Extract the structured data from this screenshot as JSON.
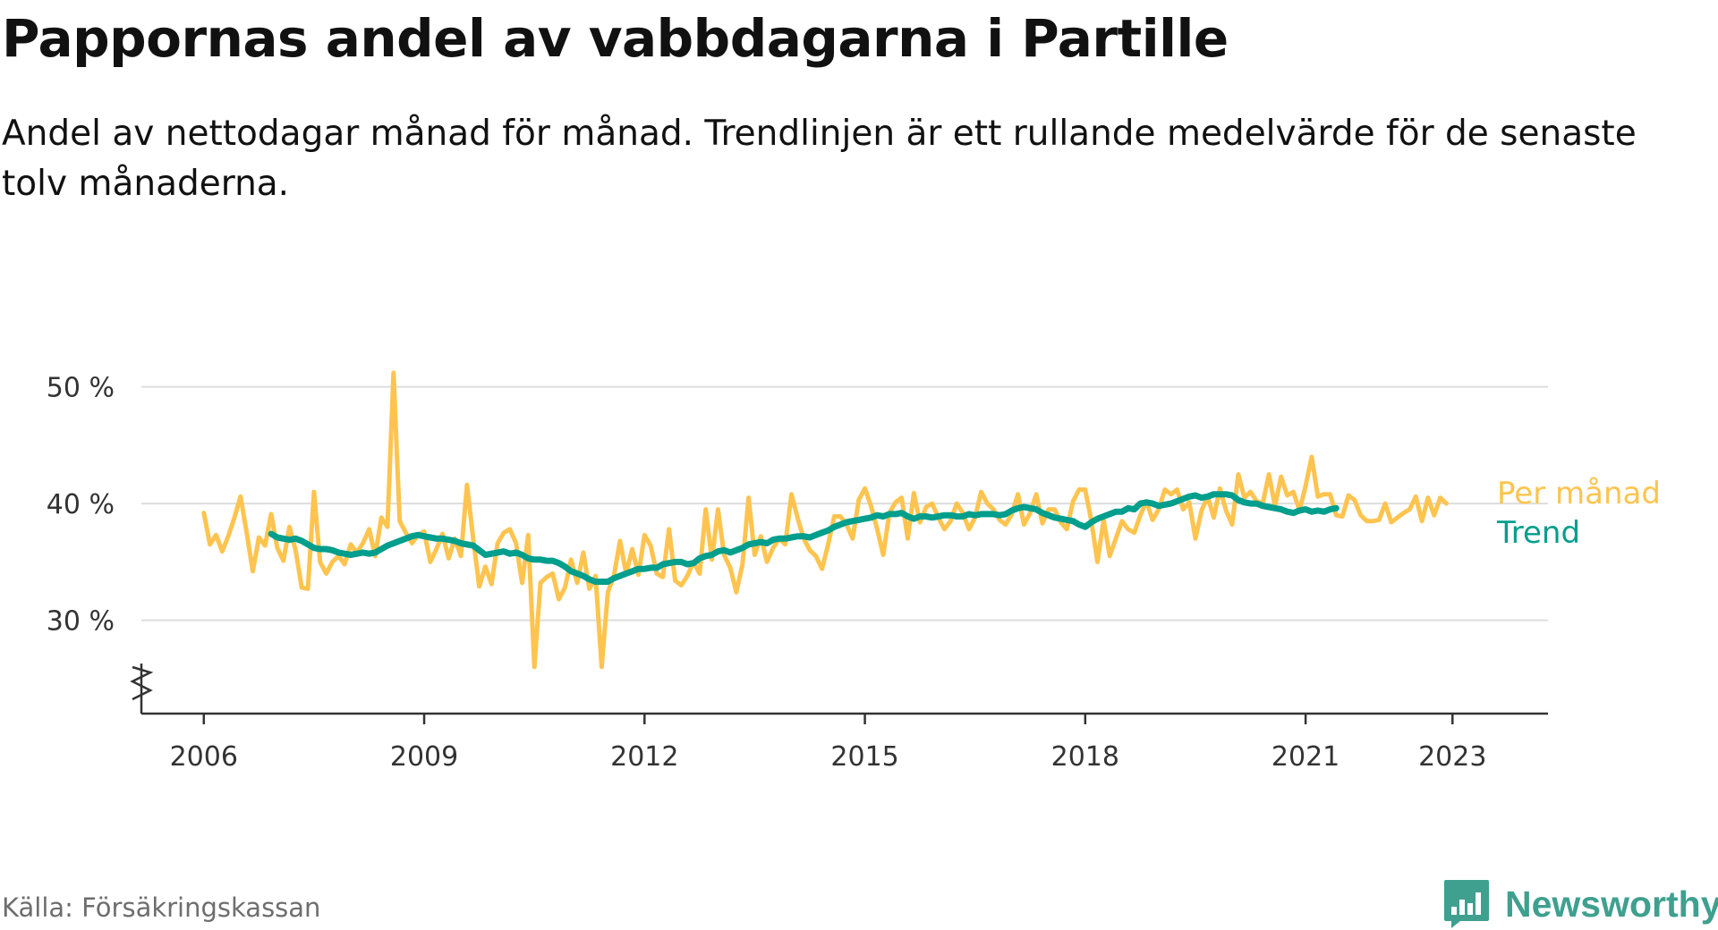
{
  "header": {
    "title": "Pappornas andel av vabbdagarna i Partille",
    "subtitle": "Andel av nettodagar månad för månad. Trendlinjen är ett rullande medelvärde för de senaste tolv månaderna."
  },
  "footer": {
    "source": "Källa: Försäkringskassan",
    "brand": "Newsworthy"
  },
  "colors": {
    "monthly": "#fec44f",
    "trend": "#009e8c",
    "grid": "#dddddd",
    "axis": "#333333",
    "brand": "#3fa08f"
  },
  "chart_data": {
    "type": "line",
    "title": "Pappornas andel av vabbdagarna i Partille",
    "subtitle": "Andel av nettodagar månad för månad. Trendlinjen är ett rullande medelvärde för de senaste tolv månaderna.",
    "x_unit": "year",
    "y_unit": "%",
    "xlim": [
      2005.15,
      2024.3
    ],
    "ylim": [
      22,
      52.5
    ],
    "y_ticks": [
      {
        "value": 30,
        "label": "30 %"
      },
      {
        "value": 40,
        "label": "40 %"
      },
      {
        "value": 50,
        "label": "50 %"
      }
    ],
    "x_ticks": [
      {
        "value": 2006,
        "label": "2006"
      },
      {
        "value": 2009,
        "label": "2009"
      },
      {
        "value": 2012,
        "label": "2012"
      },
      {
        "value": 2015,
        "label": "2015"
      },
      {
        "value": 2018,
        "label": "2018"
      },
      {
        "value": 2021,
        "label": "2021"
      },
      {
        "value": 2023,
        "label": "2023"
      }
    ],
    "grid": true,
    "axis_break": true,
    "legend_placement": "right end of lines",
    "series": [
      {
        "name": "Per månad",
        "color": "#fec44f",
        "start_year": 2006,
        "step_months": 1,
        "values": [
          39.2,
          36.5,
          37.3,
          35.9,
          37.2,
          38.8,
          40.6,
          37.5,
          34.2,
          37.1,
          36.4,
          39.1,
          36.2,
          35.1,
          38.0,
          36.0,
          32.8,
          32.7,
          41.0,
          35.0,
          34.0,
          35.0,
          35.5,
          34.8,
          36.5,
          35.8,
          36.6,
          37.8,
          35.5,
          38.8,
          38.0,
          51.2,
          38.5,
          37.5,
          36.6,
          37.3,
          37.6,
          35.0,
          36.1,
          37.4,
          35.3,
          37.0,
          35.5,
          41.6,
          37.0,
          32.9,
          34.6,
          33.1,
          36.6,
          37.5,
          37.8,
          36.6,
          33.2,
          37.3,
          26.0,
          33.2,
          33.7,
          34.0,
          31.8,
          32.8,
          35.2,
          33.2,
          35.8,
          32.7,
          33.8,
          26.0,
          32.4,
          33.8,
          36.8,
          34.0,
          36.1,
          33.9,
          37.3,
          36.4,
          34.0,
          33.7,
          37.8,
          33.4,
          33.0,
          33.8,
          35.0,
          34.0,
          39.5,
          35.2,
          39.5,
          35.6,
          34.5,
          32.4,
          34.8,
          40.5,
          35.6,
          37.2,
          35.0,
          36.2,
          37.0,
          36.5,
          40.8,
          38.8,
          37.0,
          36.0,
          35.5,
          34.4,
          36.5,
          38.9,
          38.9,
          38.2,
          37.0,
          40.3,
          41.3,
          39.8,
          37.8,
          35.6,
          39.2,
          40.1,
          40.5,
          37.0,
          40.9,
          38.4,
          39.7,
          40.0,
          38.8,
          37.8,
          38.5,
          40.0,
          39.2,
          37.8,
          38.8,
          41.0,
          40.0,
          39.5,
          38.6,
          38.2,
          39.1,
          40.8,
          38.2,
          39.2,
          40.8,
          38.3,
          39.5,
          39.5,
          38.4,
          37.8,
          40.2,
          41.2,
          41.2,
          38.5,
          35.0,
          38.6,
          35.5,
          37.0,
          38.5,
          37.8,
          37.5,
          39.0,
          40.2,
          38.6,
          39.5,
          41.2,
          40.8,
          41.2,
          39.5,
          40.1,
          37.0,
          39.4,
          40.6,
          38.8,
          41.3,
          39.4,
          38.2,
          42.5,
          40.5,
          41.0,
          40.2,
          40.0,
          42.5,
          39.8,
          42.3,
          40.7,
          41.0,
          39.4,
          41.5,
          44.0,
          40.6,
          40.8,
          40.8,
          39.0,
          38.9,
          40.7,
          40.3,
          39.0,
          38.5,
          38.5,
          38.6,
          40.0,
          38.4,
          38.8,
          39.2,
          39.5,
          40.6,
          38.5,
          40.5,
          39.0,
          40.5,
          40.0
        ]
      },
      {
        "name": "Trend",
        "color": "#009e8c",
        "start_year": 2006.917,
        "step_months": 1,
        "values": [
          37.4,
          37.1,
          37.0,
          36.9,
          37.0,
          36.8,
          36.5,
          36.2,
          36.1,
          36.1,
          36.0,
          35.8,
          35.7,
          35.6,
          35.7,
          35.8,
          35.7,
          35.8,
          36.1,
          36.4,
          36.6,
          36.8,
          37.0,
          37.2,
          37.3,
          37.2,
          37.1,
          37.0,
          37.0,
          36.9,
          36.8,
          36.6,
          36.5,
          36.4,
          36.0,
          35.6,
          35.7,
          35.8,
          35.9,
          35.7,
          35.8,
          35.6,
          35.3,
          35.2,
          35.2,
          35.1,
          35.1,
          34.9,
          34.6,
          34.2,
          34.0,
          33.8,
          33.5,
          33.3,
          33.3,
          33.3,
          33.6,
          33.8,
          34.0,
          34.2,
          34.4,
          34.4,
          34.5,
          34.5,
          34.8,
          34.9,
          35.0,
          35.0,
          34.8,
          34.9,
          35.3,
          35.5,
          35.6,
          35.9,
          36.0,
          35.8,
          36.0,
          36.2,
          36.5,
          36.6,
          36.7,
          36.6,
          36.9,
          37.0,
          37.0,
          37.1,
          37.2,
          37.2,
          37.1,
          37.3,
          37.5,
          37.7,
          38.0,
          38.2,
          38.4,
          38.5,
          38.6,
          38.7,
          38.8,
          39.0,
          38.9,
          39.1,
          39.1,
          39.2,
          38.9,
          38.7,
          38.9,
          38.9,
          38.8,
          38.9,
          39.0,
          39.0,
          38.9,
          38.9,
          39.1,
          39.0,
          39.1,
          39.1,
          39.1,
          39.0,
          39.1,
          39.4,
          39.6,
          39.7,
          39.6,
          39.5,
          39.2,
          39.0,
          38.8,
          38.7,
          38.6,
          38.5,
          38.2,
          38.0,
          38.4,
          38.7,
          38.9,
          39.1,
          39.3,
          39.3,
          39.6,
          39.5,
          40.0,
          40.1,
          40.0,
          39.8,
          39.9,
          40.0,
          40.2,
          40.4,
          40.6,
          40.7,
          40.5,
          40.6,
          40.8,
          40.8,
          40.8,
          40.7,
          40.3,
          40.1,
          40.0,
          40.0,
          39.8,
          39.7,
          39.6,
          39.5,
          39.3,
          39.2,
          39.4,
          39.5,
          39.3,
          39.4,
          39.3,
          39.5,
          39.6
        ]
      }
    ]
  }
}
